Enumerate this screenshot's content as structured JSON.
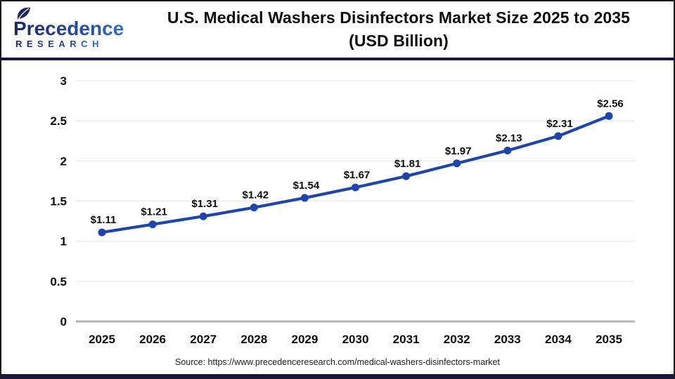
{
  "header": {
    "logo": {
      "brand": "Precedence",
      "sub": "RESEARCH"
    },
    "title_line1": "U.S. Medical Washers Disinfectors Market Size 2025 to 2035",
    "title_line2": "(USD Billion)"
  },
  "footer": {
    "source": "Source: https://www.precedenceresearch.com/medical-washers-disinfectors-market"
  },
  "theme": {
    "series_blue": "#1e45ab",
    "navy_bar": "#161640",
    "grid_line": "#ededed",
    "axis_line": "#b3b3b3",
    "logo_navy": "#1c2a5e",
    "logo_blue": "#2f6fd2",
    "text_black": "#0d0d0d"
  },
  "chart_data": {
    "type": "line",
    "title": "U.S. Medical Washers Disinfectors Market Size 2025 to 2035 (USD Billion)",
    "x": [
      "2025",
      "2026",
      "2027",
      "2028",
      "2029",
      "2030",
      "2031",
      "2032",
      "2033",
      "2034",
      "2035"
    ],
    "values": [
      1.11,
      1.21,
      1.31,
      1.42,
      1.54,
      1.67,
      1.81,
      1.97,
      2.13,
      2.31,
      2.56
    ],
    "point_labels": [
      "$1.11",
      "$1.21",
      "$1.31",
      "$1.42",
      "$1.54",
      "$1.67",
      "$1.81",
      "$1.97",
      "$2.13",
      "$2.31",
      "$2.56"
    ],
    "y_ticks": [
      0,
      0.5,
      1,
      1.5,
      2,
      2.5,
      3
    ],
    "y_tick_labels": [
      "0",
      "0.5",
      "1",
      "1.5",
      "2",
      "2.5",
      "3"
    ],
    "ylim": [
      0,
      3
    ],
    "xlabel": "",
    "ylabel": "",
    "grid": "horizontal",
    "legend": "none",
    "series_color": "#1e45ab"
  }
}
